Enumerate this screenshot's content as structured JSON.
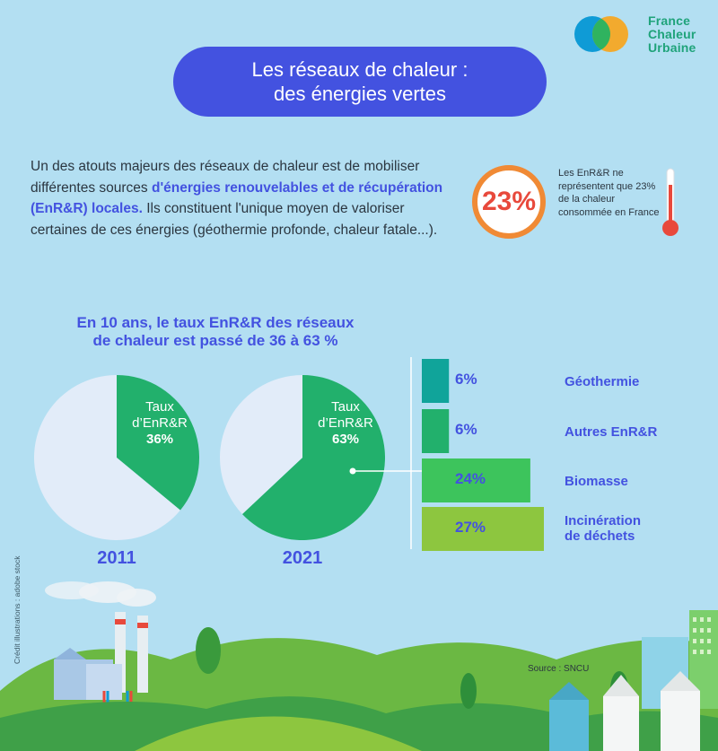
{
  "brand": {
    "line1": "France",
    "line2": "Chaleur",
    "line3": "Urbaine"
  },
  "title": {
    "line1": "Les réseaux de chaleur :",
    "line2": "des énergies vertes"
  },
  "intro": {
    "part1": "Un des atouts majeurs des réseaux de chaleur est de mobiliser différentes sources ",
    "highlight": "d'énergies renouvelables et de récupération (EnR&R) locales.",
    "part2": " Ils constituent l'unique moyen de valoriser certaines de ces énergies (géothermie profonde, chaleur fatale...)."
  },
  "stat": {
    "value": "23%",
    "note": "Les EnR&R ne représentent que 23% de la chaleur consommée en France"
  },
  "subtitle": {
    "line1": "En 10 ans, le taux EnR&R des réseaux",
    "line2": "de chaleur est passé de 36 à 63 %"
  },
  "chart_data": [
    {
      "type": "pie",
      "title": "2011",
      "slices": [
        {
          "label": "Taux d’EnR&R",
          "value": 36,
          "color": "#22b06c"
        },
        {
          "label": "",
          "value": 64,
          "color": "#e2ecf9"
        }
      ],
      "label_lines": [
        "Taux",
        "d’EnR&R",
        "36%"
      ]
    },
    {
      "type": "pie",
      "title": "2021",
      "slices": [
        {
          "label": "Taux d’EnR&R",
          "value": 63,
          "color": "#22b06c"
        },
        {
          "label": "",
          "value": 37,
          "color": "#e2ecf9"
        }
      ],
      "label_lines": [
        "Taux",
        "d’EnR&R",
        "63%"
      ]
    },
    {
      "type": "bar",
      "orientation": "horizontal",
      "categories": [
        "Géothermie",
        "Autres EnR&R",
        "Biomasse",
        "Incinération de déchets"
      ],
      "category_lines": [
        [
          "Géothermie"
        ],
        [
          "Autres EnR&R"
        ],
        [
          "Biomasse"
        ],
        [
          "Incinération",
          "de déchets"
        ]
      ],
      "values": [
        6,
        6,
        24,
        27
      ],
      "labels": [
        "6%",
        "6%",
        "24%",
        "27%"
      ],
      "colors": [
        "#10a49a",
        "#22b06c",
        "#3dc45c",
        "#8dc63f"
      ],
      "xlim": [
        0,
        27
      ]
    }
  ],
  "source": "Source : SNCU",
  "credit": "Crédit illustrations : adobe stock",
  "colors": {
    "background": "#b3dff2",
    "accent": "#4352e0",
    "green": "#22b06c",
    "orange": "#f08a35",
    "red": "#e8493c"
  }
}
